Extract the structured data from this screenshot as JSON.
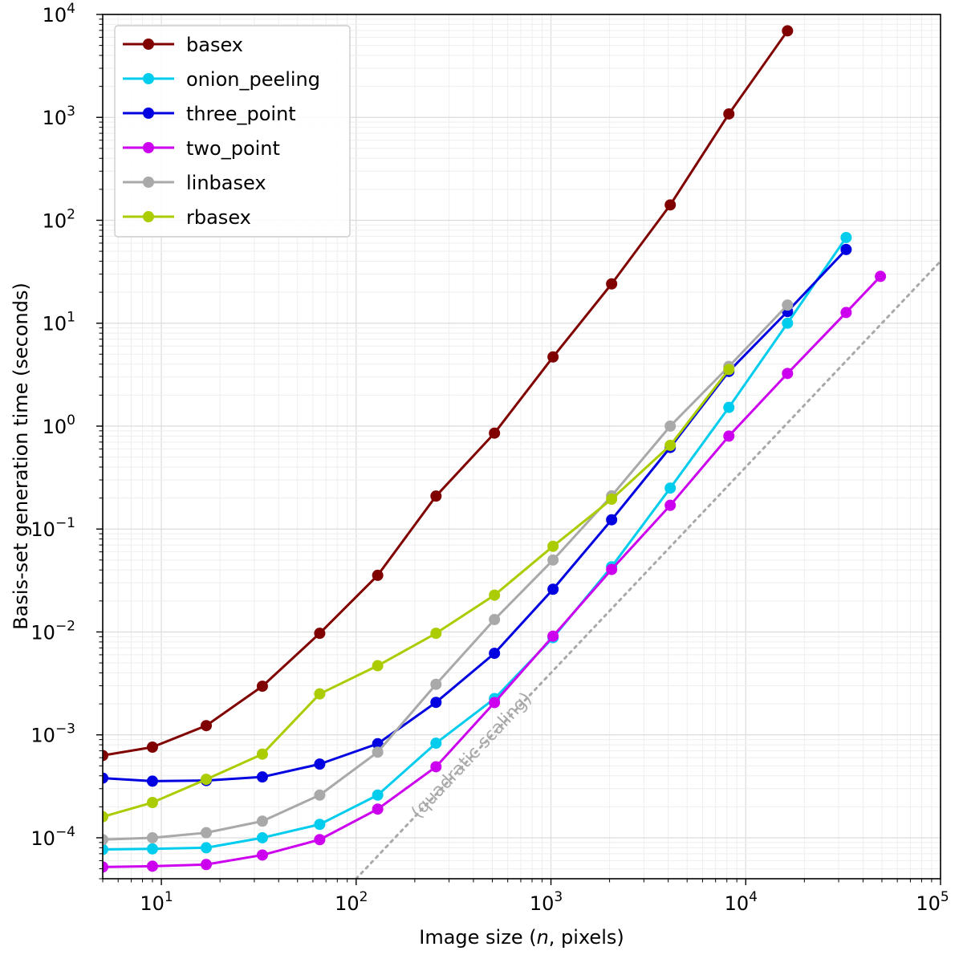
{
  "chart_data": {
    "type": "line",
    "xlabel_parts": [
      "Image size (",
      "n",
      ", pixels)"
    ],
    "ylabel": "Basis-set generation time (seconds)",
    "xscale": "log",
    "yscale": "log",
    "xlim": [
      5,
      100000
    ],
    "ylim": [
      4e-05,
      10000
    ],
    "grid": true,
    "legend_position": "upper-left",
    "x_ticks": [
      {
        "value": 10,
        "base": "10",
        "exp": "1"
      },
      {
        "value": 100,
        "base": "10",
        "exp": "2"
      },
      {
        "value": 1000,
        "base": "10",
        "exp": "3"
      },
      {
        "value": 10000,
        "base": "10",
        "exp": "4"
      },
      {
        "value": 100000,
        "base": "10",
        "exp": "5"
      }
    ],
    "y_ticks": [
      {
        "value": 0.0001,
        "base": "10",
        "exp": "−4"
      },
      {
        "value": 0.001,
        "base": "10",
        "exp": "−3"
      },
      {
        "value": 0.01,
        "base": "10",
        "exp": "−2"
      },
      {
        "value": 0.1,
        "base": "10",
        "exp": "−1"
      },
      {
        "value": 1,
        "base": "10",
        "exp": "0"
      },
      {
        "value": 10,
        "base": "10",
        "exp": "1"
      },
      {
        "value": 100,
        "base": "10",
        "exp": "2"
      },
      {
        "value": 1000,
        "base": "10",
        "exp": "3"
      },
      {
        "value": 10000,
        "base": "10",
        "exp": "4"
      }
    ],
    "series": [
      {
        "name": "basex",
        "color": "#800000",
        "x": [
          5,
          9,
          17,
          33,
          65,
          129,
          257,
          513,
          1025,
          2049,
          4097,
          8193,
          16385
        ],
        "y": [
          0.00063,
          0.00076,
          0.00123,
          0.00297,
          0.0097,
          0.0355,
          0.209,
          0.855,
          4.7,
          24.1,
          141,
          1080,
          6930
        ]
      },
      {
        "name": "onion_peeling",
        "color": "#00ccee",
        "x": [
          5,
          9,
          17,
          33,
          65,
          129,
          257,
          513,
          1025,
          2049,
          4097,
          8193,
          16385,
          32769
        ],
        "y": [
          7.7e-05,
          7.8e-05,
          8e-05,
          0.0001,
          0.000135,
          0.00026,
          0.00083,
          0.00225,
          0.0088,
          0.043,
          0.25,
          1.52,
          10,
          68
        ]
      },
      {
        "name": "three_point",
        "color": "#0000e0",
        "x": [
          5,
          9,
          17,
          33,
          65,
          129,
          257,
          513,
          1025,
          2049,
          4097,
          8193,
          16385,
          32769
        ],
        "y": [
          0.00038,
          0.000355,
          0.00036,
          0.00039,
          0.00052,
          0.00082,
          0.00207,
          0.0062,
          0.026,
          0.123,
          0.62,
          3.4,
          13,
          52
        ]
      },
      {
        "name": "two_point",
        "color": "#cc00ee",
        "x": [
          5,
          9,
          17,
          33,
          65,
          129,
          257,
          513,
          1025,
          2049,
          4097,
          8193,
          16385,
          32769,
          49153
        ],
        "y": [
          5.2e-05,
          5.3e-05,
          5.5e-05,
          6.8e-05,
          9.6e-05,
          0.00019,
          0.00049,
          0.00206,
          0.0091,
          0.0405,
          0.17,
          0.8,
          3.25,
          12.7,
          28.5
        ]
      },
      {
        "name": "linbasex",
        "color": "#a9a9a9",
        "x": [
          5,
          9,
          17,
          33,
          65,
          129,
          257,
          513,
          1025,
          2049,
          4097,
          8193,
          16385
        ],
        "y": [
          9.6e-05,
          0.0001,
          0.000112,
          0.000145,
          0.00026,
          0.00068,
          0.0031,
          0.0132,
          0.05,
          0.21,
          1.0,
          3.8,
          15
        ]
      },
      {
        "name": "rbasex",
        "color": "#aacc00",
        "x": [
          5,
          9,
          17,
          33,
          65,
          129,
          257,
          513,
          1025,
          2049,
          4097,
          8193
        ],
        "y": [
          0.00016,
          0.00022,
          0.00037,
          0.00065,
          0.0025,
          0.0047,
          0.0097,
          0.0228,
          0.068,
          0.195,
          0.65,
          3.55
        ]
      }
    ],
    "reference_line": {
      "label": "(quadratic scaling)",
      "color": "#a9a9a9",
      "style": "dotted",
      "x": [
        100,
        100000
      ],
      "y": [
        4e-05,
        40
      ]
    }
  }
}
